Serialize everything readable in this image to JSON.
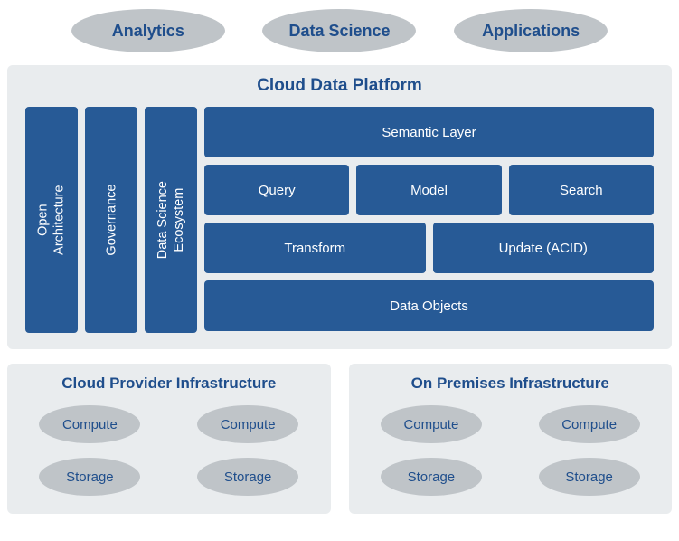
{
  "colors": {
    "panel_bg": "#e9ecee",
    "ellipse_bg": "#bfc4c8",
    "primary_text": "#1f4e8c",
    "box_bg": "#275a96",
    "box_text": "#ffffff"
  },
  "top": [
    {
      "label": "Analytics"
    },
    {
      "label": "Data Science"
    },
    {
      "label": "Applications"
    }
  ],
  "cdp": {
    "title": "Cloud Data Platform",
    "vbars": [
      {
        "label": "Open\nArchitecture"
      },
      {
        "label": "Governance"
      },
      {
        "label": "Data Science\nEcosystem"
      }
    ],
    "rows": [
      [
        {
          "label": "Semantic Layer"
        }
      ],
      [
        {
          "label": "Query"
        },
        {
          "label": "Model"
        },
        {
          "label": "Search"
        }
      ],
      [
        {
          "label": "Transform"
        },
        {
          "label": "Update (ACID)"
        }
      ],
      [
        {
          "label": "Data Objects"
        }
      ]
    ]
  },
  "infra": [
    {
      "title": "Cloud Provider Infrastructure",
      "items": [
        "Compute",
        "Compute",
        "Storage",
        "Storage"
      ]
    },
    {
      "title": "On Premises Infrastructure",
      "items": [
        "Compute",
        "Compute",
        "Storage",
        "Storage"
      ]
    }
  ]
}
